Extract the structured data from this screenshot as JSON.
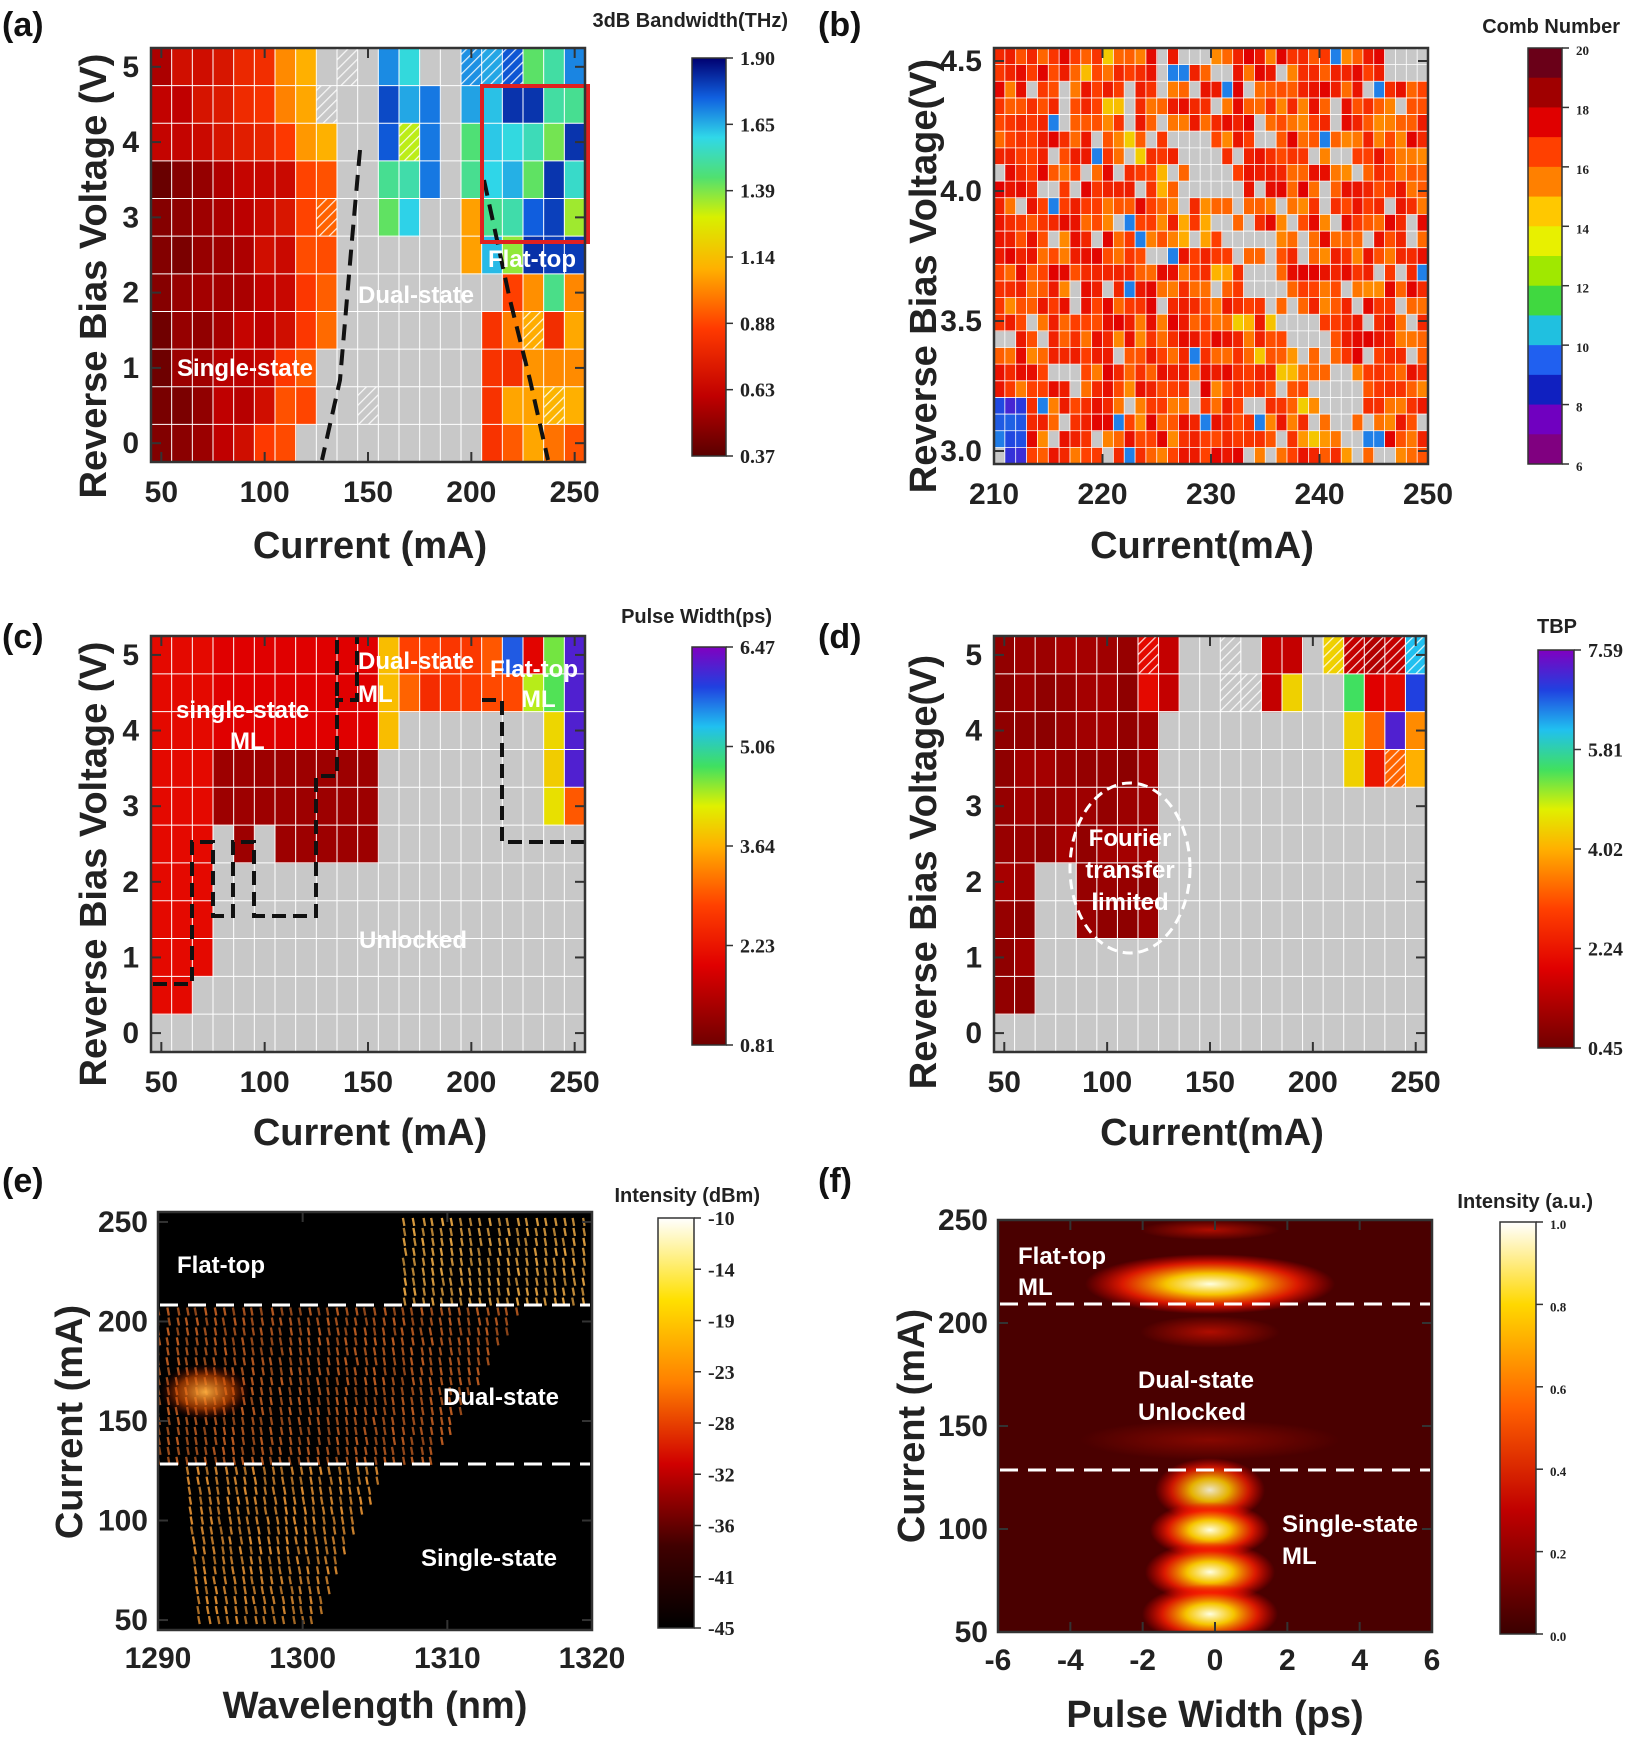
{
  "chart_data": [
    {
      "panel": "(a)",
      "type": "heatmap",
      "xlabel": "Current (mA)",
      "ylabel": "Reverse Bias Voltage (V)",
      "xticks": [
        50,
        100,
        150,
        200,
        250
      ],
      "yticks": [
        0,
        1,
        2,
        3,
        4,
        5
      ],
      "xlim": [
        45,
        255
      ],
      "ylim": [
        -0.25,
        5.25
      ],
      "colorbar": {
        "title": "3dB  Bandwidth(THz)",
        "ticks": [
          "1.90",
          "1.65",
          "1.39",
          "1.14",
          "0.88",
          "0.63",
          "0.37"
        ],
        "range": [
          0.37,
          1.9
        ]
      },
      "annotations": [
        "Single-state",
        "Dual-state",
        "Flat-top"
      ]
    },
    {
      "panel": "(b)",
      "type": "heatmap",
      "xlabel": "Current(mA)",
      "ylabel": "Reverse Bias Voltage(V)",
      "xticks": [
        210,
        220,
        230,
        240,
        250
      ],
      "yticks": [
        "3.0",
        "3.5",
        "4.0",
        "4.5"
      ],
      "xlim": [
        210,
        250
      ],
      "ylim": [
        2.95,
        4.55
      ],
      "colorbar": {
        "title": "Comb Number",
        "ticks": [
          "20",
          "18",
          "16",
          "14",
          "12",
          "10",
          "8",
          "6"
        ],
        "range": [
          6,
          20
        ]
      }
    },
    {
      "panel": "(c)",
      "type": "heatmap",
      "xlabel": "Current (mA)",
      "ylabel": "Reverse Bias Voltage (V)",
      "xticks": [
        50,
        100,
        150,
        200,
        250
      ],
      "yticks": [
        0,
        1,
        2,
        3,
        4,
        5
      ],
      "xlim": [
        45,
        255
      ],
      "ylim": [
        -0.25,
        5.25
      ],
      "colorbar": {
        "title": "Pulse Width(ps)",
        "ticks": [
          "6.47",
          "5.06",
          "3.64",
          "2.23",
          "0.81"
        ],
        "range": [
          0.81,
          6.47
        ]
      },
      "annotations": [
        "single-state",
        "ML",
        "Dual-state",
        "ML",
        "Flat-top",
        "ML",
        "Unlocked"
      ]
    },
    {
      "panel": "(d)",
      "type": "heatmap",
      "xlabel": "Current(mA)",
      "ylabel": "Reverse Bias Voltage(V)",
      "xticks": [
        50,
        100,
        150,
        200,
        250
      ],
      "yticks": [
        0,
        1,
        2,
        3,
        4,
        5
      ],
      "xlim": [
        45,
        255
      ],
      "ylim": [
        -0.25,
        5.25
      ],
      "colorbar": {
        "title": "TBP",
        "ticks": [
          "7.59",
          "5.81",
          "4.02",
          "2.24",
          "0.45"
        ],
        "range": [
          0.45,
          7.59
        ]
      },
      "annotations": [
        "Fourier",
        "transfer",
        "limited"
      ]
    },
    {
      "panel": "(e)",
      "type": "heatmap",
      "xlabel": "Wavelength (nm)",
      "ylabel": "Current (mA)",
      "xticks": [
        1290,
        1300,
        1310,
        1320
      ],
      "yticks": [
        50,
        100,
        150,
        200,
        250
      ],
      "xlim": [
        1290,
        1320
      ],
      "ylim": [
        45,
        255
      ],
      "dashed_lines_at_current": [
        130,
        210
      ],
      "colorbar": {
        "title": "Intensity (dBm)",
        "ticks": [
          "-10",
          "-14",
          "-19",
          "-23",
          "-28",
          "-32",
          "-36",
          "-41",
          "-45"
        ],
        "range": [
          -45,
          -10
        ]
      },
      "annotations": [
        "Flat-top",
        "Dual-state",
        "Single-state"
      ]
    },
    {
      "panel": "(f)",
      "type": "heatmap",
      "xlabel": "Pulse Width (ps)",
      "ylabel": "Current (mA)",
      "xticks": [
        -6,
        -4,
        -2,
        0,
        2,
        4,
        6
      ],
      "yticks": [
        50,
        100,
        150,
        200,
        250
      ],
      "xlim": [
        -6,
        6
      ],
      "ylim": [
        50,
        250
      ],
      "dashed_lines_at_current": [
        130,
        210
      ],
      "colorbar": {
        "title": "Intensity (a.u.)",
        "ticks": [
          "1.0",
          "0.8",
          "0.6",
          "0.4",
          "0.2",
          "0.0"
        ],
        "range": [
          0,
          1
        ]
      },
      "annotations": [
        "Flat-top",
        "ML",
        "Dual-state",
        "Unlocked",
        "Single-state",
        "ML"
      ]
    }
  ]
}
